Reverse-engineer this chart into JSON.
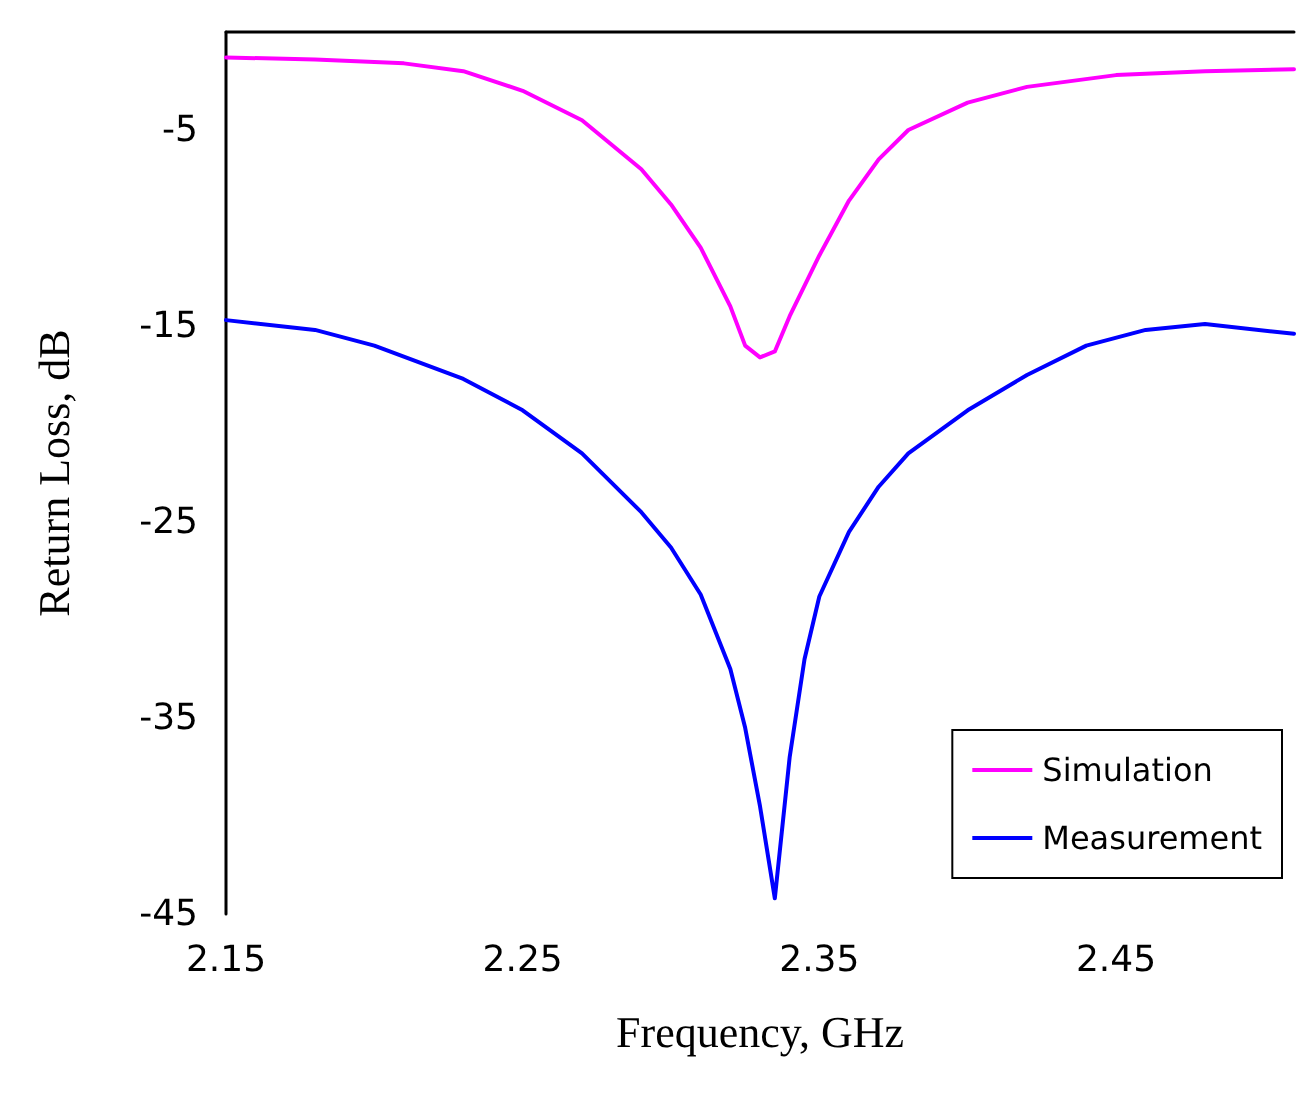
{
  "chart_data": {
    "type": "line",
    "xlabel": "Frequency, GHz",
    "ylabel": "Return Loss, dB",
    "xlim": [
      2.15,
      2.51
    ],
    "xticks": [
      2.15,
      2.25,
      2.35,
      2.45
    ],
    "ylim": [
      -45,
      0
    ],
    "yticks": [
      -5,
      -15,
      -25,
      -35,
      -45
    ],
    "grid": false,
    "legend": "bottom right",
    "marker": "none",
    "line_style": "solid",
    "series": [
      {
        "name": "Simulation",
        "color": "#ff00ff",
        "x": [
          2.15,
          2.18,
          2.21,
          2.23,
          2.25,
          2.27,
          2.29,
          2.3,
          2.31,
          2.32,
          2.325,
          2.33,
          2.335,
          2.34,
          2.35,
          2.36,
          2.37,
          2.38,
          2.4,
          2.42,
          2.45,
          2.48,
          2.51
        ],
        "values": [
          -1.3,
          -1.4,
          -1.6,
          -2.0,
          -3.0,
          -4.5,
          -7.0,
          -8.8,
          -11.0,
          -14.0,
          -16.0,
          -16.6,
          -16.3,
          -14.5,
          -11.4,
          -8.6,
          -6.5,
          -5.0,
          -3.6,
          -2.8,
          -2.2,
          -2.0,
          -1.9
        ]
      },
      {
        "name": "Measurement",
        "color": "#0000ff",
        "x": [
          2.15,
          2.18,
          2.2,
          2.23,
          2.25,
          2.27,
          2.29,
          2.3,
          2.31,
          2.32,
          2.325,
          2.33,
          2.335,
          2.34,
          2.345,
          2.35,
          2.36,
          2.37,
          2.38,
          2.4,
          2.42,
          2.44,
          2.46,
          2.48,
          2.51
        ],
        "values": [
          -14.7,
          -15.2,
          -16.0,
          -17.7,
          -19.3,
          -21.5,
          -24.5,
          -26.3,
          -28.7,
          -32.5,
          -35.5,
          -39.5,
          -44.2,
          -37.0,
          -32.0,
          -28.8,
          -25.5,
          -23.2,
          -21.5,
          -19.3,
          -17.5,
          -16.0,
          -15.2,
          -14.9,
          -15.4
        ]
      }
    ]
  }
}
